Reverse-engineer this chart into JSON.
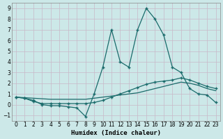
{
  "xlabel": "Humidex (Indice chaleur)",
  "bg_color": "#cce8e8",
  "line_color": "#1a6b6b",
  "grid_color": "#aad0d0",
  "grid_color_minor": "#c8e4e4",
  "xlim": [
    -0.5,
    23.5
  ],
  "ylim": [
    -1.5,
    9.5
  ],
  "xticks": [
    0,
    1,
    2,
    3,
    4,
    5,
    6,
    7,
    8,
    9,
    10,
    11,
    12,
    13,
    14,
    15,
    16,
    17,
    18,
    19,
    20,
    21,
    22,
    23
  ],
  "yticks": [
    -1,
    0,
    1,
    2,
    3,
    4,
    5,
    6,
    7,
    8,
    9
  ],
  "line1_x": [
    0,
    1,
    2,
    3,
    4,
    5,
    6,
    7,
    8,
    9,
    10,
    11,
    12,
    13,
    14,
    15,
    16,
    17,
    18,
    19,
    20,
    21,
    22,
    23
  ],
  "line1_y": [
    0.7,
    0.6,
    0.4,
    0.0,
    -0.1,
    -0.1,
    -0.2,
    -0.3,
    -1.1,
    1.0,
    3.5,
    7.0,
    4.0,
    3.5,
    7.0,
    9.0,
    8.0,
    6.5,
    3.5,
    3.0,
    1.5,
    1.0,
    0.9,
    0.2
  ],
  "line2_x": [
    0,
    1,
    2,
    3,
    4,
    5,
    6,
    7,
    8,
    9,
    10,
    11,
    12,
    13,
    14,
    15,
    16,
    17,
    18,
    19,
    20,
    21,
    22,
    23
  ],
  "line2_y": [
    0.7,
    0.65,
    0.6,
    0.55,
    0.5,
    0.5,
    0.5,
    0.5,
    0.5,
    0.6,
    0.7,
    0.8,
    0.9,
    1.0,
    1.1,
    1.3,
    1.5,
    1.7,
    1.9,
    2.1,
    2.0,
    1.8,
    1.5,
    1.3
  ],
  "line3_x": [
    0,
    1,
    2,
    3,
    4,
    5,
    6,
    7,
    8,
    9,
    10,
    11,
    12,
    13,
    14,
    15,
    16,
    17,
    18,
    19,
    20,
    21,
    22,
    23
  ],
  "line3_y": [
    0.7,
    0.6,
    0.3,
    0.1,
    0.1,
    0.1,
    0.1,
    0.1,
    0.1,
    0.2,
    0.4,
    0.7,
    1.0,
    1.3,
    1.6,
    1.9,
    2.1,
    2.2,
    2.3,
    2.5,
    2.3,
    2.0,
    1.7,
    1.5
  ]
}
